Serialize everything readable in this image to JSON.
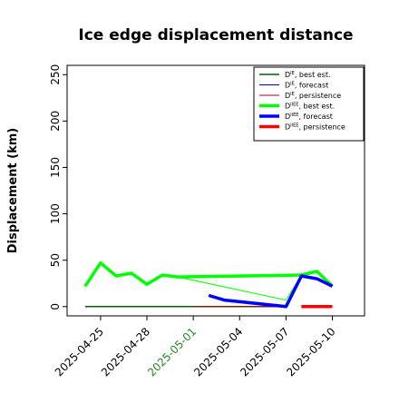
{
  "chart_data": {
    "type": "line",
    "title": "Ice edge displacement distance",
    "xlabel": "",
    "ylabel": "Displacement (km)",
    "ylim": [
      -10,
      260
    ],
    "xlim": [
      "2025-04-22T20:00",
      "2025-05-12T02:00"
    ],
    "yticks": [
      0,
      50,
      100,
      150,
      200,
      250
    ],
    "xticks": [
      {
        "date": "2025-04-25",
        "label": "2025-04-25",
        "color": "#000000"
      },
      {
        "date": "2025-04-28",
        "label": "2025-04-28",
        "color": "#000000"
      },
      {
        "date": "2025-05-01",
        "label": "2025-05-01",
        "color": "#228B22"
      },
      {
        "date": "2025-05-04",
        "label": "2025-05-04",
        "color": "#000000"
      },
      {
        "date": "2025-05-07",
        "label": "2025-05-07",
        "color": "#000000"
      },
      {
        "date": "2025-05-10",
        "label": "2025-05-10",
        "color": "#000000"
      }
    ],
    "grid": false,
    "legend_position": "top-right",
    "series": [
      {
        "name": "D^IE, best est.",
        "legend": {
          "main": "D",
          "sup": "IE",
          "rest": ", best est."
        },
        "color": "#006400",
        "width": 1.5,
        "style": "solid",
        "points": [
          [
            "2025-04-24",
            0
          ],
          [
            "2025-05-07",
            0
          ]
        ]
      },
      {
        "name": "D^IE, forecast",
        "legend": {
          "main": "D",
          "sup": "IE",
          "rest": ", forecast"
        },
        "color": "#0000cd",
        "width": 1,
        "style": "solid",
        "points": [
          [
            "2025-05-02",
            12
          ],
          [
            "2025-05-03",
            7
          ],
          [
            "2025-05-07",
            1
          ]
        ]
      },
      {
        "name": "D^IE, persistence",
        "legend": {
          "main": "D",
          "sup": "IE",
          "rest": ", persistence"
        },
        "color": "#b20000",
        "width": 1,
        "style": "solid",
        "points": [
          [
            "2025-05-01",
            0
          ],
          [
            "2025-05-07",
            0
          ]
        ]
      },
      {
        "name": "D^IIEE, best est.",
        "legend": {
          "main": "D",
          "sup": "IIEE",
          "rest": ", best est."
        },
        "color": "#00ff00",
        "width": 3.5,
        "style": "solid",
        "points": [
          [
            "2025-04-24",
            22
          ],
          [
            "2025-04-25",
            47
          ],
          [
            "2025-04-26",
            33
          ],
          [
            "2025-04-27",
            36
          ],
          [
            "2025-04-28",
            24
          ],
          [
            "2025-04-29",
            34
          ],
          [
            "2025-04-30",
            32
          ],
          [
            "2025-05-08",
            34
          ],
          [
            "2025-05-09",
            38
          ],
          [
            "2025-05-10",
            22
          ]
        ]
      },
      {
        "name": "D^IIEE, best est. (thin segment)",
        "color": "#00ff00",
        "width": 1,
        "style": "solid",
        "points": [
          [
            "2025-04-30",
            32
          ],
          [
            "2025-05-07",
            7
          ],
          [
            "2025-05-08",
            34
          ]
        ]
      },
      {
        "name": "D^IIEE, forecast",
        "legend": {
          "main": "D",
          "sup": "IIEE",
          "rest": ", forecast"
        },
        "color": "#0000ff",
        "width": 3.5,
        "style": "solid",
        "points": [
          [
            "2025-05-02",
            12
          ],
          [
            "2025-05-03",
            7
          ],
          [
            "2025-05-07",
            0
          ],
          [
            "2025-05-08",
            33
          ],
          [
            "2025-05-09",
            30
          ],
          [
            "2025-05-10",
            22
          ]
        ]
      },
      {
        "name": "D^IIEE, persistence",
        "legend": {
          "main": "D",
          "sup": "IIEE",
          "rest": ", persistence"
        },
        "color": "#ff0000",
        "width": 3.5,
        "style": "solid",
        "points": [
          [
            "2025-05-08",
            0
          ],
          [
            "2025-05-10",
            0
          ]
        ]
      }
    ]
  }
}
